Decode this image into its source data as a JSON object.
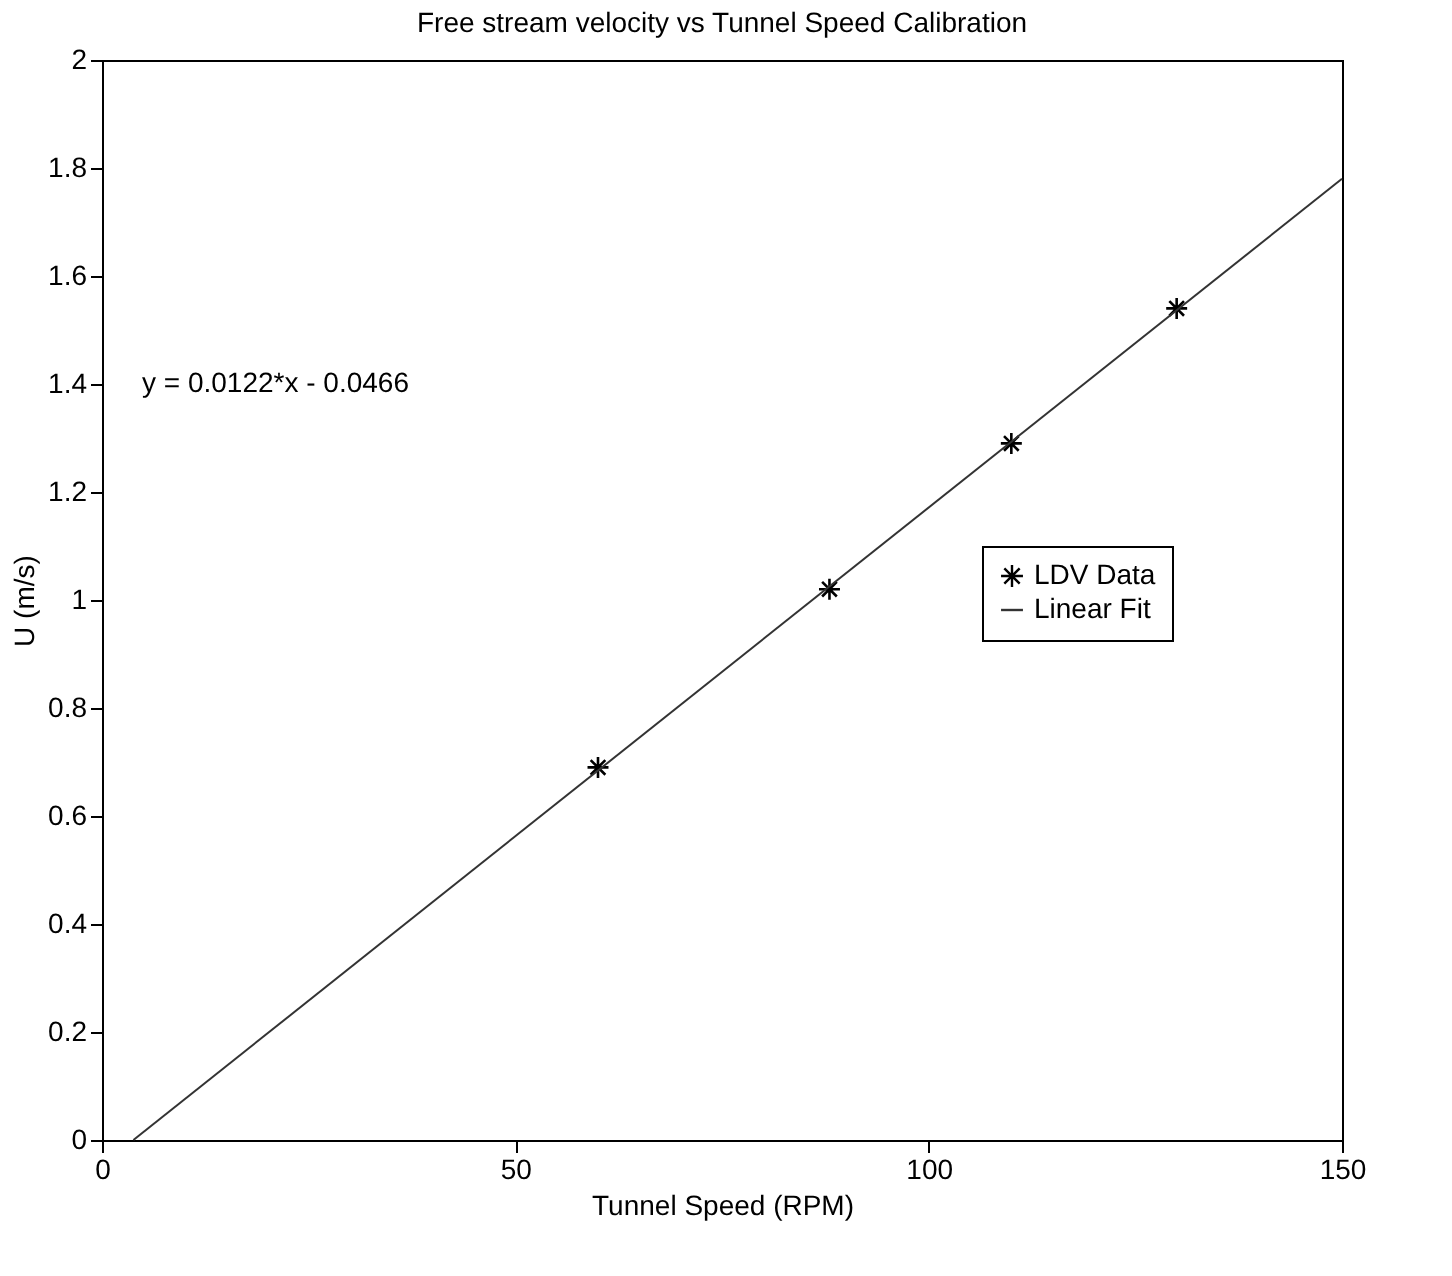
{
  "chart_data": {
    "type": "scatter",
    "title": "Free stream velocity vs Tunnel Speed Calibration",
    "xlabel": "Tunnel Speed (RPM)",
    "ylabel": "U (m/s)",
    "annotations": [
      "y = 0.0122*x - 0.0466"
    ],
    "series": [
      {
        "name": "LDV Data",
        "color": "#000000",
        "marker": "cross",
        "x": [
          60,
          88,
          110,
          130
        ],
        "values": [
          0.69,
          1.02,
          1.29,
          1.54
        ]
      },
      {
        "name": "Linear Fit",
        "type": "line",
        "color": "#333333",
        "line_style": "solid",
        "x": [
          3.8,
          150
        ],
        "values": [
          0,
          1.78
        ]
      }
    ],
    "xlim": [
      0,
      150
    ],
    "xticks": [
      0,
      50,
      100,
      150
    ],
    "ylim": [
      0,
      2
    ],
    "yticks": [
      0,
      0.2,
      0.4,
      0.6,
      0.8,
      1,
      1.2,
      1.4,
      1.6,
      1.8,
      2
    ],
    "grid": false,
    "legend": "right"
  }
}
